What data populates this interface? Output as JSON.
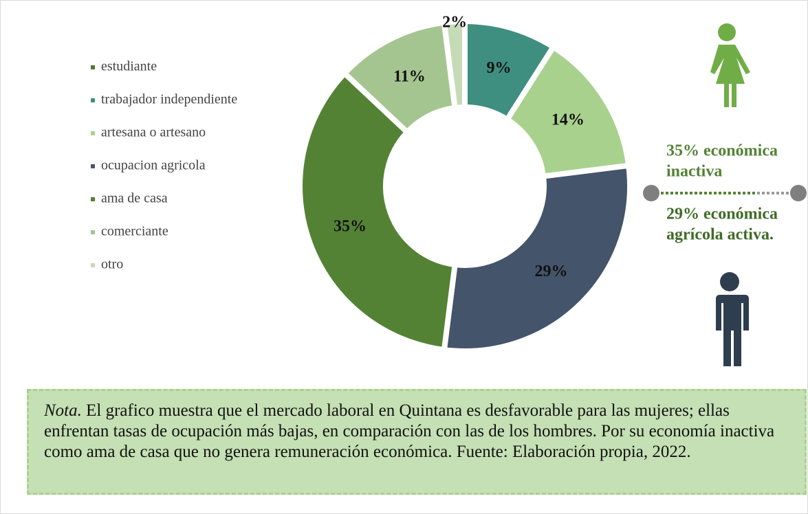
{
  "chart_data": {
    "type": "donut",
    "categories": [
      "estudiante",
      "trabajador independiente",
      "artesana o artesano",
      "ocupacion agricola",
      "ama de casa",
      "comerciante",
      "otro"
    ],
    "values": [
      0,
      9,
      14,
      29,
      35,
      11,
      2
    ],
    "value_labels": [
      null,
      "9%",
      "14%",
      "29%",
      "35%",
      "11%",
      "2%"
    ],
    "colors": [
      "#4e7a34",
      "#3f8f80",
      "#a9d18e",
      "#44546a",
      "#548235",
      "#a5c590",
      "#c5dbb7"
    ],
    "annotations": [
      {
        "lines": [
          "35% económica",
          "inactiva"
        ],
        "color": "#548235"
      },
      {
        "lines": [
          "29% económica",
          "agrícola activa."
        ],
        "color": "#3f6b28"
      }
    ]
  },
  "note": {
    "label": "Nota.",
    "text": " El grafico muestra que el mercado laboral en Quintana es desfavorable para las mujeres; ellas enfrentan tasas de ocupación más bajas, en comparación con las de los hombres. Por su economía inactiva como ama de casa que no genera remuneración económica. Fuente: Elaboración propia, 2022."
  }
}
